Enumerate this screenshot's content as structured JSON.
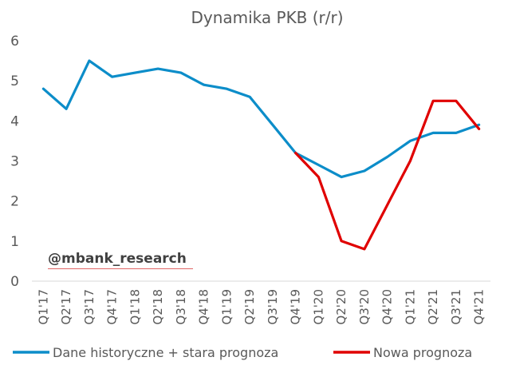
{
  "chart_data": {
    "type": "line",
    "title": "Dynamika PKB (r/r)",
    "xlabel": "",
    "ylabel": "",
    "ylim": [
      0,
      6
    ],
    "yticks": [
      0,
      1,
      2,
      3,
      4,
      5,
      6
    ],
    "grid": false,
    "legend_position": "bottom",
    "categories": [
      "Q1'17",
      "Q2'17",
      "Q3'17",
      "Q4'17",
      "Q1'18",
      "Q2'18",
      "Q3'18",
      "Q4'18",
      "Q1'19",
      "Q2'19",
      "Q3'19",
      "Q4'19",
      "Q1'20",
      "Q2'20",
      "Q3'20",
      "Q4'20",
      "Q1'21",
      "Q2'21",
      "Q3'21",
      "Q4'21"
    ],
    "series": [
      {
        "name": "Dane historyczne + stara prognoza",
        "color": "#0c8dc9",
        "values": [
          4.8,
          4.3,
          5.5,
          5.1,
          5.2,
          5.3,
          5.2,
          4.9,
          4.8,
          4.6,
          3.9,
          3.2,
          2.9,
          2.6,
          2.75,
          3.1,
          3.5,
          3.7,
          3.7,
          3.9
        ]
      },
      {
        "name": "Nowa prognoza",
        "color": "#e00000",
        "values": [
          null,
          null,
          null,
          null,
          null,
          null,
          null,
          null,
          null,
          null,
          null,
          3.2,
          2.6,
          1.0,
          0.8,
          1.9,
          3.0,
          4.5,
          4.5,
          3.8
        ]
      }
    ]
  },
  "watermark": "@mbank_research"
}
